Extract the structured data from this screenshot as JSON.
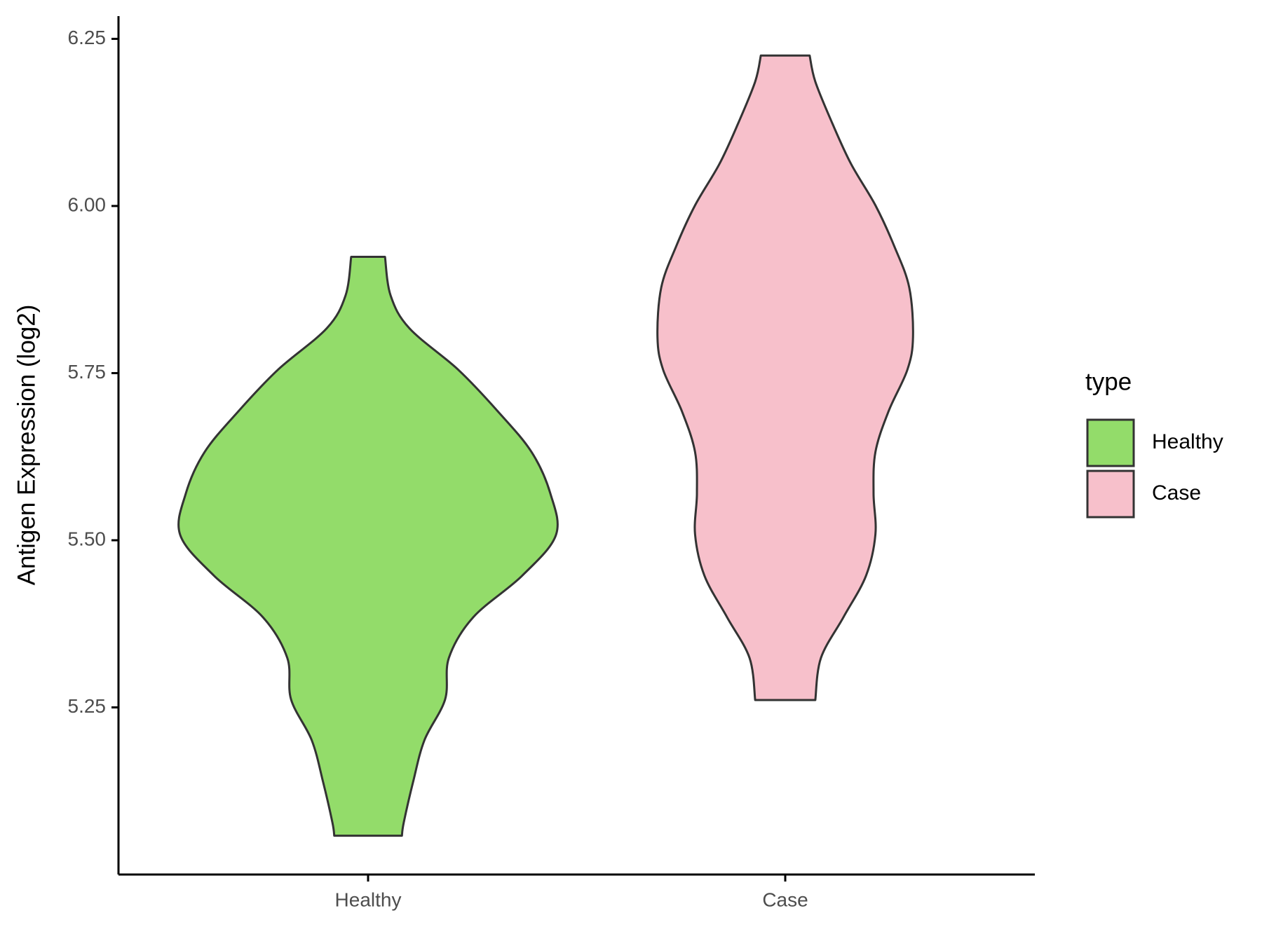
{
  "chart_data": {
    "type": "violin",
    "y_label": "Antigen Expression (log2)",
    "legend_title": "type",
    "legend": "right",
    "categories": [
      "Healthy",
      "Case"
    ],
    "ylim": [
      5.0,
      6.284
    ],
    "yticks": [
      5.25,
      {
        "value": 5.5,
        "label": "5.50"
      },
      5.75,
      {
        "value": 6,
        "label": "6.00"
      },
      6.25
    ],
    "series": [
      {
        "name": "Healthy",
        "color": "#93dc6a",
        "y": [
          5.924,
          5.866,
          5.817,
          5.755,
          5.693,
          5.632,
          5.57,
          5.508,
          5.447,
          5.385,
          5.324,
          5.262,
          5.201,
          5.139,
          5.078,
          5.058
        ],
        "density": [
          0.09,
          0.12,
          0.22,
          0.48,
          0.69,
          0.87,
          0.97,
          1.0,
          0.82,
          0.56,
          0.43,
          0.41,
          0.3,
          0.24,
          0.19,
          0.18
        ]
      },
      {
        "name": "Case",
        "color": "#f7c0cb",
        "y": [
          6.225,
          6.186,
          6.124,
          6.063,
          6.001,
          5.94,
          5.878,
          5.804,
          5.755,
          5.693,
          5.632,
          5.57,
          5.509,
          5.447,
          5.385,
          5.324,
          5.261
        ],
        "density": [
          0.13,
          0.16,
          0.25,
          0.35,
          0.48,
          0.58,
          0.66,
          0.68,
          0.65,
          0.55,
          0.48,
          0.47,
          0.48,
          0.43,
          0.31,
          0.19,
          0.16
        ]
      }
    ]
  }
}
